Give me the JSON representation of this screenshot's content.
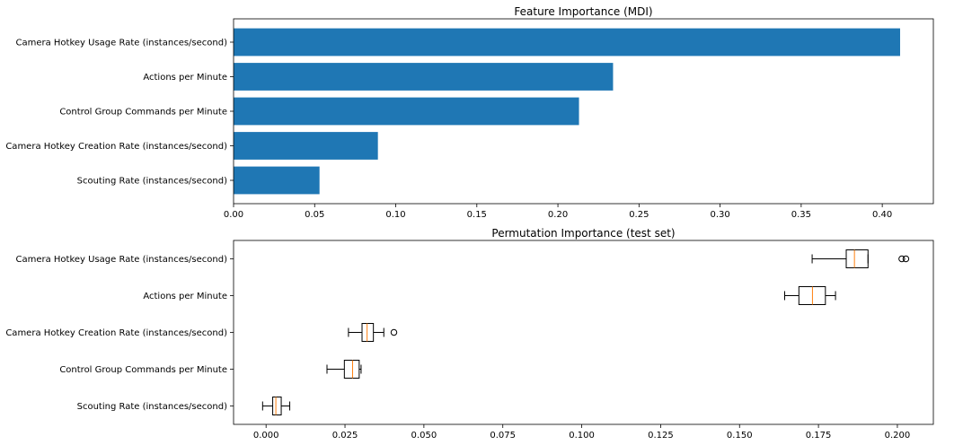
{
  "chart_data": [
    {
      "type": "bar",
      "orientation": "horizontal",
      "title": "Feature Importance (MDI)",
      "xlabel": "",
      "ylabel": "",
      "categories": [
        "Camera Hotkey Usage Rate (instances/second)",
        "Actions per Minute",
        "Control Group Commands per Minute",
        "Camera Hotkey Creation Rate (instances/second)",
        "Scouting Rate (instances/second)"
      ],
      "values": [
        0.411,
        0.234,
        0.213,
        0.089,
        0.053
      ],
      "xlim": [
        0,
        0.4315
      ],
      "xticks": [
        "0.00",
        "0.05",
        "0.10",
        "0.15",
        "0.20",
        "0.25",
        "0.30",
        "0.35",
        "0.40"
      ],
      "xtick_values": [
        0,
        0.05,
        0.1,
        0.15,
        0.2,
        0.25,
        0.3,
        0.35,
        0.4
      ],
      "bar_color": "#1f77b4",
      "grid": false
    },
    {
      "type": "boxplot",
      "orientation": "horizontal",
      "title": "Permutation Importance (test set)",
      "xlabel": "",
      "ylabel": "",
      "categories": [
        "Camera Hotkey Usage Rate (instances/second)",
        "Actions per Minute",
        "Camera Hotkey Creation Rate (instances/second)",
        "Control Group Commands per Minute",
        "Scouting Rate (instances/second)"
      ],
      "boxes": [
        {
          "whisker_low": 0.173,
          "q1": 0.1838,
          "median": 0.1864,
          "q3": 0.1907,
          "whisker_high": 0.1907,
          "fliers": [
            0.2014,
            0.2027
          ]
        },
        {
          "whisker_low": 0.1643,
          "q1": 0.1688,
          "median": 0.1731,
          "q3": 0.1772,
          "whisker_high": 0.1804,
          "fliers": []
        },
        {
          "whisker_low": 0.0261,
          "q1": 0.0304,
          "median": 0.032,
          "q3": 0.034,
          "whisker_high": 0.0373,
          "fliers": [
            0.0405
          ]
        },
        {
          "whisker_low": 0.0193,
          "q1": 0.0248,
          "median": 0.0274,
          "q3": 0.0295,
          "whisker_high": 0.0301,
          "fliers": []
        },
        {
          "whisker_low": -0.0011,
          "q1": 0.0021,
          "median": 0.0031,
          "q3": 0.0048,
          "whisker_high": 0.0075,
          "fliers": []
        }
      ],
      "xlim": [
        -0.0103,
        0.2114
      ],
      "xticks": [
        "0.000",
        "0.025",
        "0.050",
        "0.075",
        "0.100",
        "0.125",
        "0.150",
        "0.175",
        "0.200"
      ],
      "xtick_values": [
        0,
        0.025,
        0.05,
        0.075,
        0.1,
        0.125,
        0.15,
        0.175,
        0.2
      ],
      "median_color": "#ff7f0e",
      "grid": false
    }
  ]
}
